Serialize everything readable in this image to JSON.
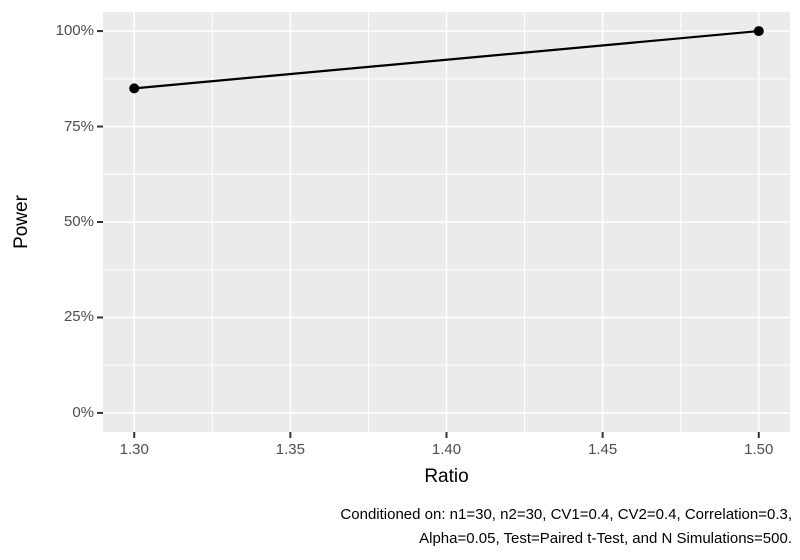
{
  "chart_data": {
    "type": "line",
    "title": "",
    "xlabel": "Ratio",
    "ylabel": "Power",
    "series": [
      {
        "name": "Power",
        "points": [
          {
            "x": 1.3,
            "y": 85
          },
          {
            "x": 1.5,
            "y": 100
          }
        ]
      }
    ],
    "xlim": [
      1.29,
      1.51
    ],
    "ylim": [
      -5,
      105
    ],
    "x_ticks": [
      {
        "value": 1.3,
        "label": "1.30"
      },
      {
        "value": 1.35,
        "label": "1.35"
      },
      {
        "value": 1.4,
        "label": "1.40"
      },
      {
        "value": 1.45,
        "label": "1.45"
      },
      {
        "value": 1.5,
        "label": "1.50"
      }
    ],
    "y_ticks": [
      {
        "value": 0,
        "label": "0%"
      },
      {
        "value": 25,
        "label": "25%"
      },
      {
        "value": 50,
        "label": "50%"
      },
      {
        "value": 75,
        "label": "75%"
      },
      {
        "value": 100,
        "label": "100%"
      }
    ],
    "x_minor_ticks": [
      1.325,
      1.375,
      1.425,
      1.475
    ],
    "y_minor_ticks": [
      12.5,
      37.5,
      62.5,
      87.5
    ],
    "grid": true,
    "legend": "none",
    "caption_lines": [
      "Conditioned on: n1=30, n2=30, CV1=0.4, CV2=0.4, Correlation=0.3,",
      "Alpha=0.05, Test=Paired t-Test, and N Simulations=500."
    ],
    "colors": {
      "page_background": "#FFFFFF",
      "panel_background": "#EBEBEB",
      "grid": "#FFFFFF",
      "line": "#000000",
      "point": "#000000",
      "tick_label": "#4D4D4D",
      "tick_mark": "#333333",
      "axis_title": "#000000",
      "caption": "#000000"
    }
  }
}
